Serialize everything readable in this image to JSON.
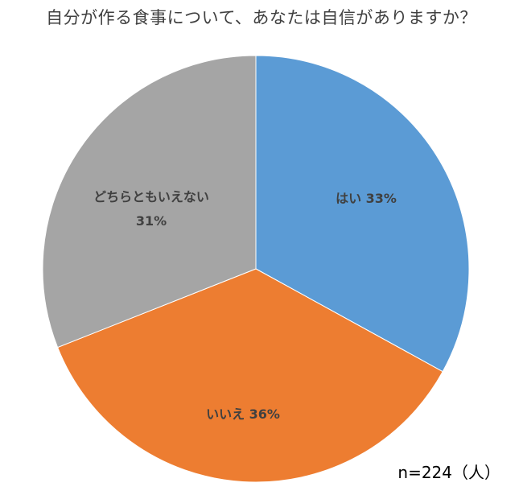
{
  "chart_data": {
    "type": "pie",
    "title": "自分が作る食事について、あなたは自信がありますか？",
    "note": "n=224（人）",
    "slices": [
      {
        "label": "はい",
        "value": 33,
        "value_label": "33%",
        "color": "#5b9bd5"
      },
      {
        "label": "いいえ",
        "value": 36,
        "value_label": "36%",
        "color": "#ed7d31"
      },
      {
        "label": "どちらともいえない",
        "value": 31,
        "value_label": "31%",
        "color": "#a5a5a5"
      }
    ],
    "start_angle_deg": 0,
    "direction": "clockwise",
    "legend": "none"
  }
}
